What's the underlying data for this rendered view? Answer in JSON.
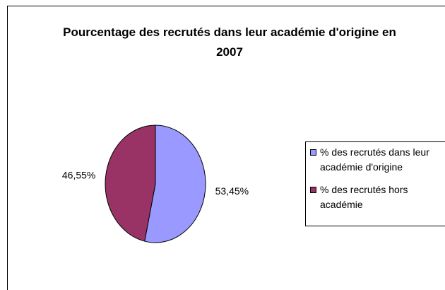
{
  "chart_data": {
    "type": "pie",
    "title": "Pourcentage des recrutés dans leur académie d'origine en 2007",
    "categories": [
      "% des recrutés dans leur académie d'origine",
      "% des recrutés hors académie"
    ],
    "values": [
      53.45,
      46.55
    ],
    "value_labels": [
      "53,45%",
      "46,55%"
    ],
    "colors": [
      "#9999FF",
      "#993366"
    ],
    "legend": "right"
  }
}
